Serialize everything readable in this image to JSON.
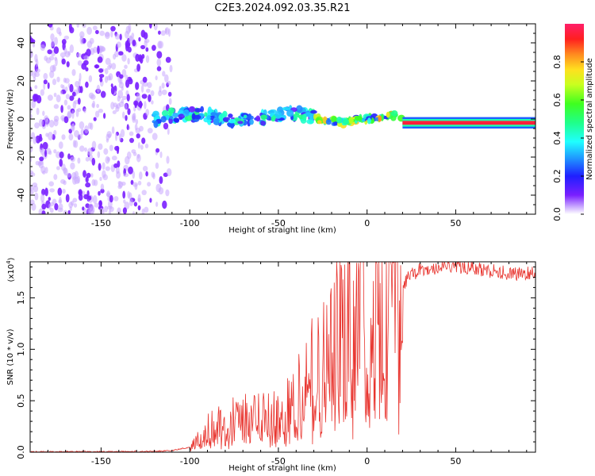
{
  "figure_title": "C2E3.2024.092.03.35.R21",
  "colors": {
    "noise": "#7a1fff",
    "snr_line": "#e8342e",
    "axis": "#000000"
  },
  "chart_data": [
    {
      "type": "heatmap",
      "title": "C2E3.2024.092.03.35.R21",
      "xlabel": "Height of straight line (km)",
      "ylabel": "Frequency (Hz)",
      "xlim": [
        -190,
        95
      ],
      "ylim": [
        -50,
        50
      ],
      "xticks": [
        -150,
        -100,
        -50,
        0,
        50
      ],
      "yticks": [
        -40,
        -20,
        0,
        20,
        40
      ],
      "colorbar": {
        "label": "Normalized spectral amplitude",
        "range": [
          0.0,
          1.0
        ],
        "ticks": [
          "0.0",
          "0.2",
          "0.4",
          "0.6",
          "0.8"
        ],
        "tick_values": [
          0.0,
          0.2,
          0.4,
          0.6,
          0.8
        ],
        "colormap": "hsv-rainbow (violet to red)"
      },
      "regions": [
        {
          "name": "noise",
          "x_range": [
            -190,
            -110
          ],
          "freq_range": [
            -50,
            50
          ],
          "amplitude": 0.1
        },
        {
          "name": "signal-noisy",
          "x_range": [
            -120,
            -30
          ],
          "freq_center": 1,
          "freq_spread": 6,
          "amplitude": 0.35
        },
        {
          "name": "signal-strong",
          "x_range": [
            -30,
            20
          ],
          "freq_center": 0,
          "freq_spread": 3,
          "amplitude": 0.6
        },
        {
          "name": "signal-stable",
          "x_range": [
            20,
            95
          ],
          "freq_center": -2,
          "freq_spread": 2,
          "amplitude": 0.95
        }
      ]
    },
    {
      "type": "line",
      "xlabel": "Height of straight line (km)",
      "ylabel": "SNR (10 * v/v)",
      "scale_label": "(x10",
      "scale_exponent": "4",
      "scale_suffix": ")",
      "xlim": [
        -190,
        95
      ],
      "ylim": [
        0,
        18500
      ],
      "xticks": [
        -150,
        -100,
        -50,
        0,
        50
      ],
      "yticks": [
        0,
        5000,
        10000,
        15000
      ],
      "ytick_labels": [
        "0.0",
        "0.5",
        "1.0",
        "1.5"
      ],
      "series": [
        {
          "name": "SNR",
          "x": [
            -190,
            -150,
            -120,
            -110,
            -100,
            -95,
            -90,
            -85,
            -80,
            -75,
            -70,
            -65,
            -60,
            -55,
            -50,
            -45,
            -40,
            -35,
            -30,
            -25,
            -20,
            -15,
            -10,
            -5,
            -2,
            0,
            5,
            10,
            15,
            20,
            25,
            30,
            40,
            50,
            60,
            70,
            80,
            90,
            95
          ],
          "values": [
            40,
            50,
            80,
            150,
            500,
            1200,
            2000,
            2600,
            2300,
            3000,
            3200,
            2800,
            3300,
            3600,
            3800,
            4200,
            5000,
            6000,
            7500,
            9000,
            10000,
            11000,
            11800,
            12000,
            11500,
            4000,
            13000,
            14000,
            15000,
            16300,
            17200,
            17700,
            18000,
            18100,
            17900,
            17600,
            17400,
            17300,
            17500
          ]
        }
      ]
    }
  ]
}
